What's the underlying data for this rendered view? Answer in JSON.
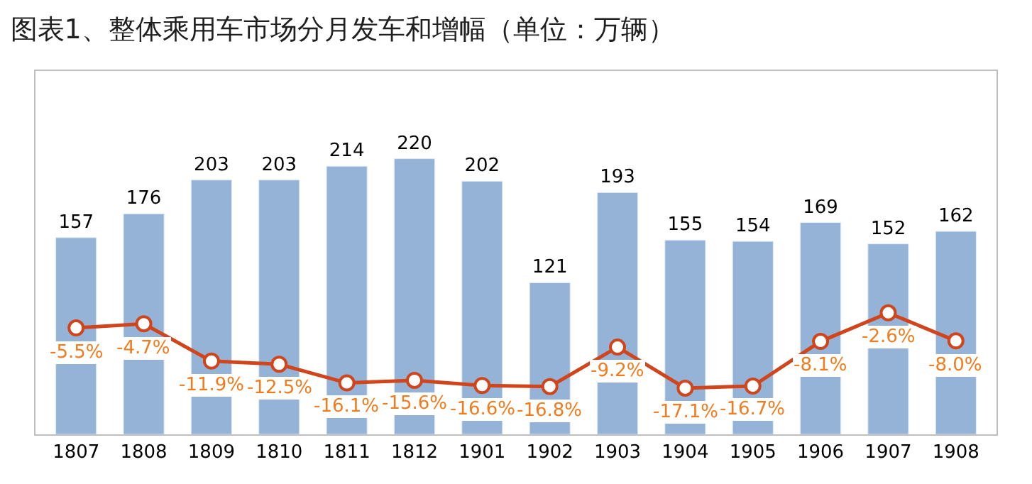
{
  "chart_data": {
    "type": "bar",
    "title": "图表1、整体乘用车市场分月发车和增幅（单位：万辆）",
    "categories": [
      "1807",
      "1808",
      "1809",
      "1810",
      "1811",
      "1812",
      "1901",
      "1902",
      "1903",
      "1904",
      "1905",
      "1906",
      "1907",
      "1908"
    ],
    "series": [
      {
        "color": "#95b3d7",
        "values": [
          157,
          176,
          203,
          203,
          214,
          220,
          202,
          121,
          193,
          155,
          154,
          169,
          152,
          162
        ]
      },
      {
        "type": "line",
        "axis": "y2",
        "color": "#d0451b",
        "marker": "circle",
        "values": [
          -5.5,
          -4.7,
          -11.9,
          -12.5,
          -16.1,
          -15.6,
          -16.6,
          -16.8,
          -9.2,
          -17.1,
          -16.7,
          -8.1,
          -2.6,
          -8.0
        ],
        "value_labels": [
          "-5.5%",
          "-4.7%",
          "-11.9%",
          "-12.5%",
          "-16.1%",
          "-15.6%",
          "-16.6%",
          "-16.8%",
          "-9.2%",
          "-17.1%",
          "-16.7%",
          "-8.1%",
          "-2.6%",
          "-8.0%"
        ]
      }
    ],
    "ylim": [
      0,
      290
    ],
    "y2lim": [
      -26,
      44
    ],
    "data_labels": true,
    "tick_labels": "x",
    "legend": false
  }
}
